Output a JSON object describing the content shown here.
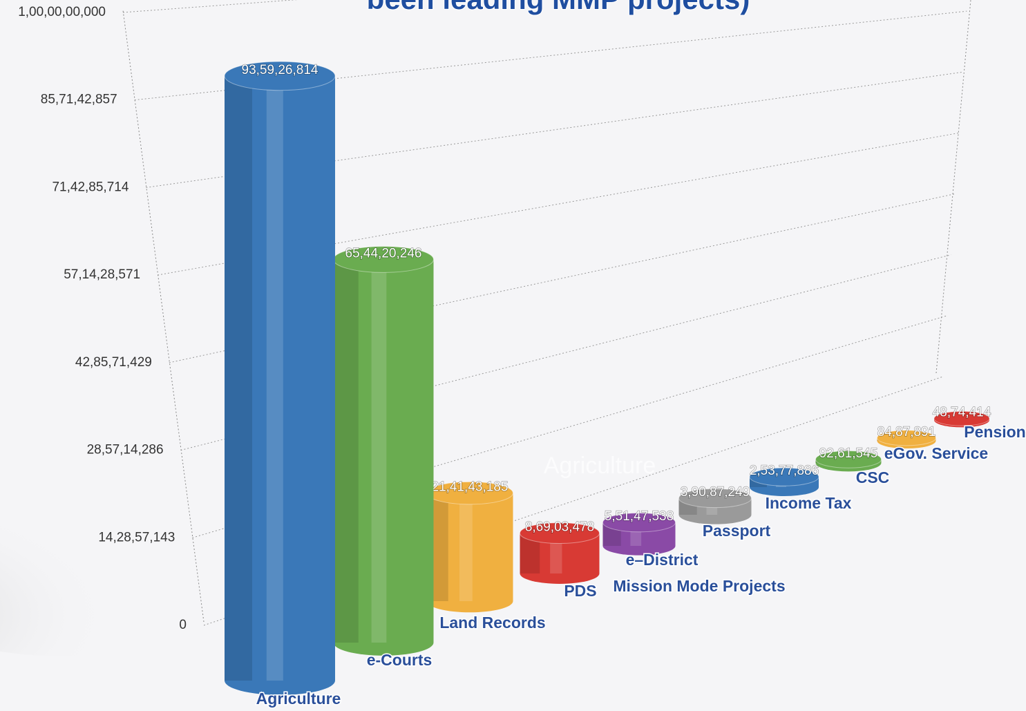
{
  "chart_data": {
    "type": "bar",
    "title": "been leading MMP projects)",
    "x_label": "Mission Mode Projects",
    "annotation": "Agriculture",
    "categories": [
      "Agriculture",
      "e-Courts",
      "Land Records",
      "PDS",
      "e–District",
      "Passport",
      "Income Tax",
      "CSC",
      "eGov. Service",
      "Pension"
    ],
    "values": [
      935926814,
      654420246,
      214143185,
      86903478,
      55147538,
      39087249,
      25377886,
      9261545,
      8487891,
      4874414
    ],
    "value_labels": [
      "93,59,26,814",
      "65,44,20,246",
      "21,41,43,185",
      "8,69,03,478",
      "5,51,47,538",
      "3,90,87,249",
      "2,53,77,886",
      "92,61,545",
      "84,87,891",
      "48,74,414"
    ],
    "colors": [
      "#3a78b8",
      "#6aac50",
      "#f0b040",
      "#d83a34",
      "#8a4aa6",
      "#9a9a9a",
      "#3a78b8",
      "#6aac50",
      "#f0b040",
      "#d83a34"
    ],
    "ylim": [
      0,
      1000000000
    ],
    "yticks": [
      {
        "value": 0,
        "label": "0"
      },
      {
        "value": 142857143,
        "label": "14,28,57,143"
      },
      {
        "value": 285714286,
        "label": "28,57,14,286"
      },
      {
        "value": 428571429,
        "label": "42,85,71,429"
      },
      {
        "value": 571428571,
        "label": "57,14,28,571"
      },
      {
        "value": 714285714,
        "label": "71,42,85,714"
      },
      {
        "value": 857142857,
        "label": "85,71,42,857"
      },
      {
        "value": 1000000000,
        "label": "1,00,00,00,000"
      }
    ],
    "grid": true
  }
}
